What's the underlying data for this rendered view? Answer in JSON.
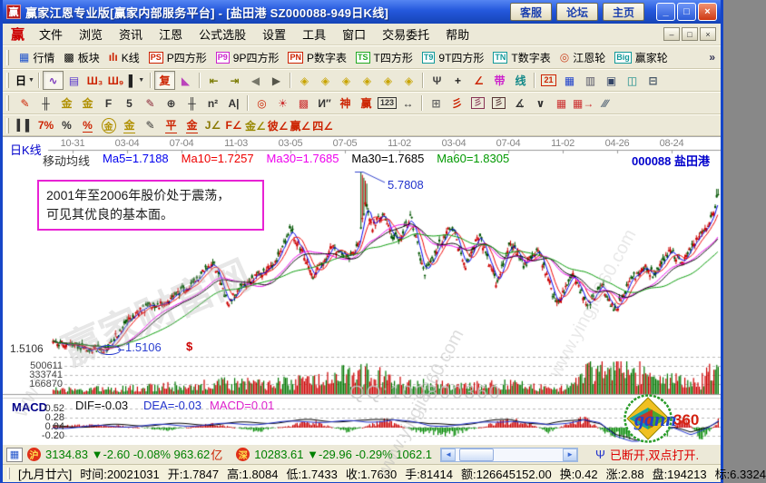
{
  "window": {
    "logo": "赢",
    "title": "赢家江恩专业版[赢家内部服务平台] - [盐田港  SZ000088-949日K线]",
    "buttons": [
      "客服",
      "论坛",
      "主页"
    ],
    "min": "_",
    "max": "□",
    "close": "×"
  },
  "menu": {
    "logo": "赢",
    "items": [
      {
        "name": "menu-file",
        "label": "文件"
      },
      {
        "name": "menu-browse",
        "label": "浏览"
      },
      {
        "name": "menu-news",
        "label": "资讯"
      },
      {
        "name": "menu-gann",
        "label": "江恩"
      },
      {
        "name": "menu-formula-picker",
        "label": "公式选股"
      },
      {
        "name": "menu-settings",
        "label": "设置"
      },
      {
        "name": "menu-tools",
        "label": "工具"
      },
      {
        "name": "menu-window",
        "label": "窗口"
      },
      {
        "name": "menu-trading",
        "label": "交易委托"
      },
      {
        "name": "menu-help",
        "label": "帮助"
      }
    ],
    "min": "–",
    "restore": "□",
    "close": "×"
  },
  "toolbar1": {
    "overflow": "»",
    "items": [
      {
        "name": "btn-quotes",
        "glyph": "▦",
        "color": "#2255cc",
        "label": "行情"
      },
      {
        "name": "btn-sectors",
        "glyph": "▩",
        "color": "#11999 9",
        "label": "板块"
      },
      {
        "name": "btn-kline",
        "glyph": "ılı",
        "color": "#cc2200",
        "label": "K线"
      },
      {
        "name": "btn-p-square",
        "badge": "PS",
        "color": "#cc2200",
        "label": "P四方形"
      },
      {
        "name": "btn-9p-square",
        "badge": "P9",
        "color": "#cc22cc",
        "label": "9P四方形"
      },
      {
        "name": "btn-p-table",
        "badge": "PN",
        "color": "#cc2200",
        "label": "P数字表"
      },
      {
        "name": "btn-t-square",
        "badge": "TS",
        "color": "#22aa22",
        "label": "T四方形"
      },
      {
        "name": "btn-9t-square",
        "badge": "T9",
        "color": "#119999",
        "label": "9T四方形"
      },
      {
        "name": "btn-t-table",
        "badge": "TN",
        "color": "#119999",
        "label": "T数字表"
      },
      {
        "name": "btn-gann-wheel",
        "glyph": "◎",
        "color": "#cc4422",
        "label": "江恩轮"
      },
      {
        "name": "btn-winner-wheel",
        "badge": "Big",
        "color": "#119999",
        "label": "赢家轮"
      }
    ]
  },
  "toolbar2": [
    {
      "n": "btn-period-day",
      "g": "日",
      "c": "#000000",
      "d": 1
    },
    {
      "sep": 1
    },
    {
      "n": "btn-chart-wave",
      "g": "∿",
      "c": "#7733bb",
      "p": 1
    },
    {
      "n": "btn-note",
      "g": "▤",
      "c": "#5533cc"
    },
    {
      "n": "btn-bars-3",
      "g": "Ш₃",
      "c": "#cc2200"
    },
    {
      "n": "btn-bars-9",
      "g": "Ш₉",
      "c": "#cc2200"
    },
    {
      "n": "btn-candle-style",
      "g": "▌",
      "c": "#222222",
      "d": 1
    },
    {
      "sep": 1
    },
    {
      "n": "btn-fuquan",
      "g": "复",
      "c": "#cc2200",
      "p": 1
    },
    {
      "n": "btn-color-chart",
      "g": "◣",
      "c": "#bb44bb"
    },
    {
      "sep": 1
    },
    {
      "n": "btn-first-page",
      "g": "⇤",
      "c": "#7a7a00"
    },
    {
      "n": "btn-last-page",
      "g": "⇥",
      "c": "#7a7a00"
    },
    {
      "n": "btn-prev",
      "g": "◀",
      "c": "#77776a"
    },
    {
      "n": "btn-next",
      "g": "▶",
      "c": "#55554a"
    },
    {
      "sep": 1
    },
    {
      "n": "btn-zoom-left",
      "g": "◈",
      "c": "#c8a400"
    },
    {
      "n": "btn-zoom-right",
      "g": "◈",
      "c": "#c8a400"
    },
    {
      "n": "btn-zoom-in",
      "g": "◈",
      "c": "#c8a400"
    },
    {
      "n": "btn-zoom-out",
      "g": "◈",
      "c": "#c8a400"
    },
    {
      "n": "btn-expand-h",
      "g": "◈",
      "c": "#c8a400"
    },
    {
      "n": "btn-shrink-h",
      "g": "◈",
      "c": "#c8a400"
    },
    {
      "sep": 1
    },
    {
      "n": "btn-pan-hand",
      "g": "Ψ",
      "c": "#444444"
    },
    {
      "n": "btn-crosshair",
      "g": "+",
      "c": "#222222"
    },
    {
      "n": "btn-angle-tool",
      "g": "∠",
      "c": "#cc2200"
    },
    {
      "n": "btn-ribbon-tool",
      "g": "带",
      "c": "#cc22cc"
    },
    {
      "n": "btn-thread-tool",
      "g": "线",
      "c": "#118888"
    },
    {
      "sep": 1
    },
    {
      "n": "btn-calendar",
      "g": "21",
      "c": "#cc2200",
      "b": 1
    },
    {
      "n": "btn-calculator",
      "g": "▦",
      "c": "#2244cc"
    },
    {
      "n": "btn-notebook",
      "g": "▥",
      "c": "#555566"
    },
    {
      "n": "btn-save",
      "g": "▣",
      "c": "#334466"
    },
    {
      "n": "btn-network",
      "g": "◫",
      "c": "#118888"
    },
    {
      "n": "btn-print",
      "g": "⊟",
      "c": "#445566"
    }
  ],
  "toolbar3": [
    {
      "n": "btn-draw-pen",
      "g": "✎",
      "c": "#cc2200"
    },
    {
      "n": "btn-grid-tool",
      "g": "╫",
      "c": "#333333"
    },
    {
      "n": "btn-gold-grid-1",
      "g": "金",
      "c": "#b09000"
    },
    {
      "n": "btn-gold-grid-2",
      "g": "金",
      "c": "#b09000"
    },
    {
      "n": "btn-f-grid",
      "g": "F",
      "c": "#333333"
    },
    {
      "n": "btn-5-grid",
      "g": "5",
      "c": "#333333"
    },
    {
      "n": "btn-brush",
      "g": "✎",
      "c": "#882233"
    },
    {
      "n": "btn-time-grid",
      "g": "⊕",
      "c": "#333333"
    },
    {
      "n": "btn-grid-tool-2",
      "g": "╫",
      "c": "#333333"
    },
    {
      "n": "btn-n-squared",
      "g": "n²",
      "c": "#333333"
    },
    {
      "n": "btn-a-line",
      "g": "A|",
      "c": "#333333"
    },
    {
      "sep": 1
    },
    {
      "n": "btn-target",
      "g": "◎",
      "c": "#cc2200"
    },
    {
      "n": "btn-star-rays",
      "g": "☀",
      "c": "#cc3333"
    },
    {
      "n": "btn-web-grid",
      "g": "▩",
      "c": "#cc3333"
    },
    {
      "n": "btn-zigzag",
      "g": "И″",
      "c": "#333333"
    },
    {
      "n": "btn-shen-tool",
      "g": "神",
      "c": "#cc2200"
    },
    {
      "n": "btn-ying-tool",
      "g": "赢",
      "c": "#cc2200"
    },
    {
      "n": "btn-ruler-123",
      "g": "123",
      "c": "#333333",
      "b": 1
    },
    {
      "n": "btn-measure-h",
      "g": "↔",
      "c": "#333333"
    },
    {
      "sep": 1
    },
    {
      "n": "btn-frame",
      "g": "⊞",
      "c": "#666666"
    },
    {
      "n": "btn-fan-rays",
      "g": "彡",
      "c": "#cc2200"
    },
    {
      "n": "btn-fan-box-1",
      "g": "彡",
      "c": "#883355",
      "b": 1
    },
    {
      "n": "btn-fan-box-2",
      "g": "彡",
      "c": "#553333",
      "b": 1
    },
    {
      "n": "btn-arrow-angle",
      "g": "∡",
      "c": "#333333"
    },
    {
      "n": "btn-v-dotted",
      "g": "∨",
      "c": "#333333"
    },
    {
      "n": "btn-red-grid",
      "g": "▦",
      "c": "#cc3333"
    },
    {
      "n": "btn-red-grid-arrow",
      "g": "▦→",
      "c": "#cc3333"
    },
    {
      "n": "btn-hatch-lines",
      "g": "∕∕∕",
      "c": "#556677"
    }
  ],
  "toolbar4": [
    {
      "n": "btn-hist-bars",
      "g": "▍▌",
      "c": "#333333"
    },
    {
      "n": "btn-7-percent",
      "g": "7%",
      "c": "#cc2200"
    },
    {
      "n": "btn-percent",
      "g": "%",
      "c": "#333333"
    },
    {
      "n": "btn-percent-line",
      "g": "%",
      "c": "#cc2200",
      "u": 1
    },
    {
      "n": "btn-gold-circle",
      "g": "金",
      "c": "#b09000",
      "ci": 1
    },
    {
      "n": "btn-gold-line",
      "g": "金",
      "c": "#b09000",
      "u": 1
    },
    {
      "n": "btn-pen-flag",
      "g": "✎",
      "c": "#333333"
    },
    {
      "n": "btn-ping-line",
      "g": "平",
      "c": "#cc2200",
      "u": 1
    },
    {
      "n": "btn-gold-red-line",
      "g": "金",
      "c": "#cc2200",
      "u": 1
    },
    {
      "n": "btn-j-angle",
      "g": "J∠",
      "c": "#887700"
    },
    {
      "n": "btn-f-angle",
      "g": "F∠",
      "c": "#cc2200"
    },
    {
      "n": "btn-gold-angle",
      "g": "金∠",
      "c": "#998800"
    },
    {
      "n": "btn-bi-angle",
      "g": "彼∠",
      "c": "#cc2200"
    },
    {
      "n": "btn-ying-angle",
      "g": "赢∠",
      "c": "#cc2200"
    },
    {
      "n": "btn-si-angle",
      "g": "四∠",
      "c": "#cc2200"
    }
  ],
  "chart": {
    "pane_label": "日K线",
    "dates": [
      "10-31",
      "03-04",
      "07-04",
      "11-03",
      "03-05",
      "07-05",
      "11-02",
      "03-04",
      "07-04",
      "11-02",
      "04-26",
      "08-24"
    ],
    "ma_title": "移动均线",
    "ma_items": [
      {
        "t": "Ma5=1.7188",
        "c": "#0000ee"
      },
      {
        "t": "Ma10=1.7257",
        "c": "#ee0000"
      },
      {
        "t": "Ma30=1.7685",
        "c": "#ee00ee"
      },
      {
        "t": "Ma30=1.7685",
        "c": "#000000"
      },
      {
        "t": "Ma60=1.8305",
        "c": "#009900"
      }
    ],
    "stock": "000088 盐田港",
    "annotation_line1": "2001年至2006年股价处于震荡，",
    "annotation_line2": "可见其优良的基本面。",
    "peak_label": "5.7808",
    "axis_low_label": "1.5106",
    "low_annotation": "1.5106",
    "dollar_marker": "$",
    "volume_scale": [
      "500611",
      "333741",
      "166870"
    ],
    "macd_label": "MACD",
    "macd_scale": [
      "0.52",
      "0.28",
      "0.04",
      "-0.20"
    ],
    "dif_label": "DIF=-0.03",
    "dea_label": "DEA=-0.03",
    "macd_value_label": "MACD=0.01",
    "watermarks": {
      "big": "赢家财富网",
      "site1": "www.yingjia360.com",
      "site2": "www.yingjia360.com",
      "small": "www.",
      "qq": "QQ:100800360"
    },
    "logo_text1": "gann",
    "logo_text2": "360",
    "colors": {
      "up": "#cc0000",
      "down": "#005500",
      "vol_up": "#cc0000",
      "vol_down": "#007700",
      "hist_up": "#cc0000",
      "hist_down": "#008800"
    },
    "render": {
      "price": [
        [
          55,
          227
        ],
        [
          112,
          235
        ],
        [
          147,
          192
        ],
        [
          177,
          182
        ],
        [
          207,
          162
        ],
        [
          232,
          137
        ],
        [
          247,
          182
        ],
        [
          277,
          152
        ],
        [
          297,
          142
        ],
        [
          317,
          102
        ],
        [
          342,
          152
        ],
        [
          362,
          122
        ],
        [
          382,
          132
        ],
        [
          392,
          118
        ],
        [
          399,
          72
        ],
        [
          406,
          100
        ],
        [
          418,
          82
        ],
        [
          428,
          110
        ],
        [
          437,
          112
        ],
        [
          449,
          87
        ],
        [
          464,
          152
        ],
        [
          479,
          122
        ],
        [
          494,
          97
        ],
        [
          509,
          142
        ],
        [
          524,
          107
        ],
        [
          544,
          162
        ],
        [
          559,
          117
        ],
        [
          574,
          142
        ],
        [
          589,
          122
        ],
        [
          609,
          182
        ],
        [
          629,
          152
        ],
        [
          644,
          187
        ],
        [
          659,
          162
        ],
        [
          674,
          192
        ],
        [
          689,
          162
        ],
        [
          704,
          142
        ],
        [
          719,
          152
        ],
        [
          734,
          127
        ],
        [
          749,
          137
        ],
        [
          764,
          112
        ],
        [
          779,
          92
        ],
        [
          789,
          60
        ]
      ],
      "vol": [
        [
          55,
          5
        ],
        [
          150,
          7
        ],
        [
          230,
          12
        ],
        [
          320,
          14
        ],
        [
          395,
          24
        ],
        [
          415,
          20
        ],
        [
          450,
          12
        ],
        [
          500,
          9
        ],
        [
          560,
          11
        ],
        [
          620,
          7
        ],
        [
          645,
          26
        ],
        [
          668,
          32
        ],
        [
          695,
          30
        ],
        [
          715,
          14
        ],
        [
          745,
          18
        ],
        [
          765,
          12
        ],
        [
          780,
          24
        ],
        [
          789,
          28
        ]
      ],
      "dif": [
        [
          55,
          319
        ],
        [
          150,
          317
        ],
        [
          230,
          316
        ],
        [
          300,
          314
        ],
        [
          340,
          312
        ],
        [
          400,
          313
        ],
        [
          430,
          310
        ],
        [
          470,
          317
        ],
        [
          520,
          315
        ],
        [
          560,
          311
        ],
        [
          600,
          317
        ],
        [
          640,
          310
        ],
        [
          658,
          315
        ],
        [
          676,
          329
        ],
        [
          698,
          334
        ],
        [
          718,
          325
        ],
        [
          738,
          320
        ],
        [
          758,
          326
        ],
        [
          778,
          318
        ],
        [
          789,
          312
        ]
      ],
      "hist": [
        [
          55,
          2
        ],
        [
          120,
          3
        ],
        [
          180,
          -3
        ],
        [
          230,
          4
        ],
        [
          280,
          -4
        ],
        [
          340,
          7
        ],
        [
          380,
          -5
        ],
        [
          420,
          8
        ],
        [
          460,
          -6
        ],
        [
          500,
          -7
        ],
        [
          540,
          5
        ],
        [
          570,
          9
        ],
        [
          600,
          -5
        ],
        [
          640,
          11
        ],
        [
          665,
          -7
        ],
        [
          690,
          -11
        ],
        [
          710,
          7
        ],
        [
          730,
          -9
        ],
        [
          750,
          11
        ],
        [
          770,
          -13
        ],
        [
          789,
          9
        ]
      ]
    }
  },
  "chart_data": {
    "type": "candlestick",
    "symbol": "SZ000088",
    "name": "盐田港",
    "period": "949日K线",
    "x_axis_dates": [
      "10-31",
      "03-04",
      "07-04",
      "11-03",
      "03-05",
      "07-05",
      "11-02",
      "03-04",
      "07-04",
      "11-02",
      "04-26",
      "08-24"
    ],
    "visible_values": {
      "peak": 5.7808,
      "low": 1.5106,
      "ma5": 1.7188,
      "ma10": 1.7257,
      "ma30": 1.7685,
      "ma60": 1.8305,
      "dif": -0.03,
      "dea": -0.03,
      "macd": 0.01
    },
    "volume_axis": [
      500611,
      333741,
      166870
    ],
    "macd_axis": [
      0.52,
      0.28,
      0.04,
      -0.2
    ],
    "legend_position": "top"
  },
  "statusbar": {
    "grid_icon": "▦",
    "sh": {
      "badge": "沪",
      "text": "3134.83 ▼-2.60 -0.08% 963.62",
      "unit": "亿"
    },
    "sz": {
      "badge": "深",
      "text": "10283.61 ▼-29.96 -0.29% 1062.1"
    },
    "scroll_left": "◄",
    "scroll_right": "►",
    "antenna": "Ψ",
    "connection": "已断开,双点打开."
  },
  "infobar": {
    "items": [
      "[九月廿六]",
      "时间:20021031",
      "开:1.7847",
      "高:1.8084",
      "低:1.7433",
      "收:1.7630",
      "手:81414",
      "额:126645152.00",
      "换:0.42",
      "涨:2.88",
      "盘:194213",
      "标:6.3324"
    ]
  }
}
